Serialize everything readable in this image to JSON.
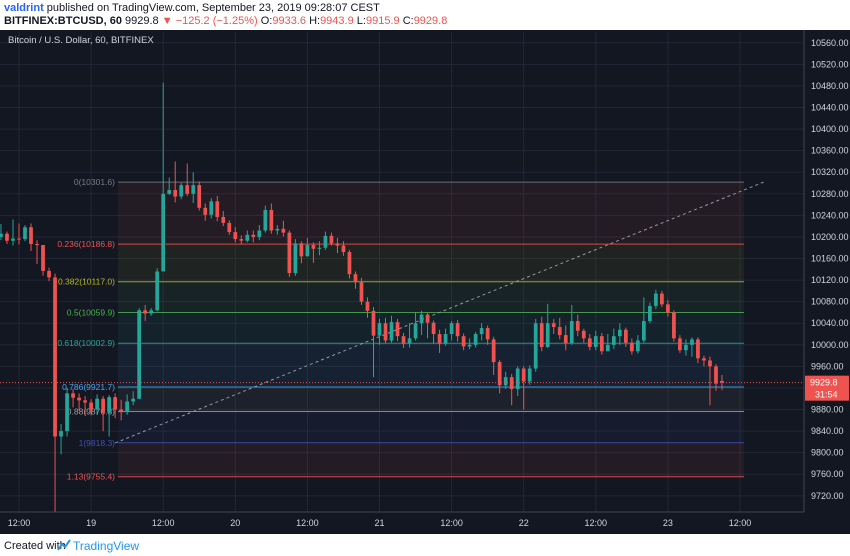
{
  "header": {
    "author": "valdrint",
    "published_text": "published on TradingView.com, September 23, 2019 09:28:07 CEST",
    "symbol": "BITFINEX:BTCUSD, 60",
    "last": "9929.8",
    "change": "−125.2 (−1.25%)",
    "o_label": "O:",
    "o_value": "9933.6",
    "h_label": "H:",
    "h_value": "9943.9",
    "l_label": "L:",
    "l_value": "9915.9",
    "c_label": "C:",
    "c_value": "9929.8"
  },
  "footer": {
    "made_with": "Created with",
    "brand": "TradingView"
  },
  "colors": {
    "background": "#131722",
    "up": "#26a69a",
    "down": "#ef5350",
    "axis_text": "#d1d4dc",
    "grid": "#232734"
  },
  "chart_data": {
    "type": "candlestick",
    "title": "Bitcoin / U.S. Dollar, 60, BITFINEX",
    "ylim": [
      9690,
      10580
    ],
    "y_ticks": [
      9720,
      9760,
      9800,
      9840,
      9880,
      9920,
      9960,
      10000,
      10040,
      10080,
      10120,
      10160,
      10200,
      10240,
      10280,
      10320,
      10360,
      10400,
      10440,
      10480,
      10520,
      10560
    ],
    "x_range": [
      -12,
      84
    ],
    "x_ticks": [
      {
        "t": 0,
        "label": "12:00"
      },
      {
        "t": 12,
        "label": "19"
      },
      {
        "t": 24,
        "label": "12:00"
      },
      {
        "t": 36,
        "label": "20"
      },
      {
        "t": 48,
        "label": "12:00"
      },
      {
        "t": 60,
        "label": "21"
      },
      {
        "t": 72,
        "label": "12:00"
      },
      {
        "t": 84,
        "label": "22"
      },
      {
        "t": 96,
        "label": "12:00"
      },
      {
        "t": 108,
        "label": "23"
      },
      {
        "t": 120,
        "label": "12:00"
      }
    ],
    "last_price": "9929.8",
    "countdown": "31:54",
    "fib_levels": [
      {
        "ratio": "0",
        "price": "10301.6",
        "label": "0(10301.6)",
        "color": "#787b86"
      },
      {
        "ratio": "0.236",
        "price": "10186.8",
        "label": "0.236(10186.8)",
        "color": "#ef5350"
      },
      {
        "ratio": "0.382",
        "price": "10117.0",
        "label": "0.382(10117.0)",
        "color": "#b5b81a"
      },
      {
        "ratio": "0.5",
        "price": "10059.9",
        "label": "0.5(10059.9)",
        "color": "#4caf50"
      },
      {
        "ratio": "0.618",
        "price": "10002.9",
        "label": "0.618(10002.9)",
        "color": "#26a69a"
      },
      {
        "ratio": "0.786",
        "price": "9921.7",
        "label": "0.786(9921.7)",
        "color": "#42a5f5"
      },
      {
        "ratio": "0.88",
        "price": "9876.3",
        "label": "0.88(9876.3)",
        "color": "#9e9e9e"
      },
      {
        "ratio": "1",
        "price": "9818.3",
        "label": "1(9818.3)",
        "color": "#3f51b5"
      },
      {
        "ratio": "1.13",
        "price": "9755.4",
        "label": "1.13(9755.4)",
        "color": "#ef5350"
      }
    ],
    "trend_line": {
      "from": [
        16,
        9818
      ],
      "to": [
        124,
        10302
      ]
    },
    "candles": [
      [
        10215,
        10212,
        10236,
        10180
      ],
      [
        10212,
        10184,
        10222,
        10170
      ],
      [
        10184,
        10200,
        10210,
        10180
      ],
      [
        10200,
        10190,
        10206,
        10166
      ],
      [
        10190,
        10212,
        10222,
        10180
      ],
      [
        10212,
        10200,
        10228,
        10196
      ],
      [
        10200,
        10206,
        10219,
        10160
      ],
      [
        10206,
        10187,
        10214,
        10178
      ],
      [
        10187,
        10200,
        10214,
        10178
      ],
      [
        10200,
        10206,
        10224,
        10194
      ],
      [
        10206,
        10193,
        10210,
        10187
      ],
      [
        10193,
        10197,
        10232,
        10184
      ],
      [
        10197,
        10196,
        10225,
        10186
      ],
      [
        10196,
        10218,
        10222,
        10192
      ],
      [
        10218,
        10187,
        10225,
        10174
      ],
      [
        10187,
        10185,
        10194,
        10150
      ],
      [
        10185,
        10137,
        10185,
        10128
      ],
      [
        10137,
        10125,
        10143,
        10118
      ],
      [
        10125,
        9830,
        10132,
        9690
      ],
      [
        9830,
        9840,
        9853,
        9797
      ],
      [
        9840,
        9910,
        9920,
        9830
      ],
      [
        9910,
        9902,
        9918,
        9884
      ],
      [
        9902,
        9897,
        9910,
        9878
      ],
      [
        9897,
        9893,
        9905,
        9869
      ],
      [
        9893,
        9880,
        9899,
        9869
      ],
      [
        9880,
        9900,
        9908,
        9870
      ],
      [
        9900,
        9874,
        9905,
        9840
      ],
      [
        9874,
        9903,
        9907,
        9830
      ],
      [
        9903,
        9880,
        9910,
        9864
      ],
      [
        9880,
        9875,
        9898,
        9860
      ],
      [
        9875,
        9895,
        9908,
        9870
      ],
      [
        9895,
        9900,
        9914,
        9888
      ],
      [
        9900,
        10064,
        10068,
        9899
      ],
      [
        10064,
        10058,
        10074,
        10044
      ],
      [
        10058,
        10064,
        10068,
        10054
      ],
      [
        10064,
        10136,
        10142,
        10062
      ],
      [
        10136,
        10280,
        10486,
        10138
      ],
      [
        10280,
        10287,
        10310,
        10278
      ],
      [
        10287,
        10275,
        10340,
        10264
      ],
      [
        10275,
        10296,
        10300,
        10270
      ],
      [
        10296,
        10280,
        10336,
        10276
      ],
      [
        10280,
        10296,
        10320,
        10263
      ],
      [
        10296,
        10254,
        10303,
        10249
      ],
      [
        10254,
        10241,
        10262,
        10230
      ],
      [
        10241,
        10266,
        10272,
        10234
      ],
      [
        10266,
        10237,
        10276,
        10229
      ],
      [
        10237,
        10226,
        10248,
        10220
      ],
      [
        10226,
        10209,
        10231,
        10204
      ],
      [
        10209,
        10196,
        10218,
        10190
      ],
      [
        10196,
        10193,
        10203,
        10186
      ],
      [
        10193,
        10204,
        10212,
        10190
      ],
      [
        10204,
        10200,
        10212,
        10190
      ],
      [
        10200,
        10212,
        10222,
        10194
      ],
      [
        10212,
        10250,
        10258,
        10208
      ],
      [
        10250,
        10212,
        10262,
        10206
      ],
      [
        10212,
        10215,
        10222,
        10204
      ],
      [
        10215,
        10208,
        10230,
        10201
      ],
      [
        10208,
        10133,
        10212,
        10126
      ],
      [
        10133,
        10188,
        10196,
        10128
      ],
      [
        10188,
        10164,
        10192,
        10151
      ],
      [
        10164,
        10185,
        10198,
        10164
      ],
      [
        10185,
        10178,
        10190,
        10152
      ],
      [
        10178,
        10180,
        10192,
        10166
      ],
      [
        10180,
        10202,
        10210,
        10176
      ],
      [
        10202,
        10188,
        10208,
        10184
      ],
      [
        10188,
        10184,
        10198,
        10170
      ],
      [
        10184,
        10172,
        10192,
        10165
      ],
      [
        10172,
        10131,
        10176,
        10123
      ],
      [
        10131,
        10116,
        10136,
        10104
      ],
      [
        10116,
        10080,
        10124,
        10074
      ],
      [
        10080,
        10063,
        10088,
        10050
      ],
      [
        10063,
        10017,
        10070,
        9940
      ],
      [
        10017,
        10040,
        10048,
        10000
      ],
      [
        10040,
        10008,
        10050,
        10003
      ],
      [
        10008,
        10042,
        10054,
        10004
      ],
      [
        10042,
        10016,
        10048,
        10007
      ],
      [
        10016,
        10002,
        10022,
        9994
      ],
      [
        10002,
        10012,
        10040,
        9995
      ],
      [
        10012,
        10040,
        10061,
        10008
      ],
      [
        10040,
        10056,
        10063,
        10018
      ],
      [
        10056,
        10041,
        10060,
        10012
      ],
      [
        10041,
        10020,
        10045,
        10002
      ],
      [
        10020,
        10002,
        10028,
        9985
      ],
      [
        10002,
        10020,
        10030,
        9998
      ],
      [
        10020,
        10040,
        10044,
        10008
      ],
      [
        10040,
        10016,
        10046,
        10006
      ],
      [
        10016,
        9997,
        10021,
        9990
      ],
      [
        9997,
        10000,
        10012,
        9992
      ],
      [
        10000,
        10020,
        10024,
        9995
      ],
      [
        10020,
        10031,
        10040,
        10008
      ],
      [
        10031,
        10010,
        10036,
        10000
      ],
      [
        10010,
        9968,
        10015,
        9944
      ],
      [
        9968,
        9925,
        9972,
        9910
      ],
      [
        9925,
        9940,
        9950,
        9918
      ],
      [
        9940,
        9918,
        9946,
        9888
      ],
      [
        9918,
        9956,
        9960,
        9905
      ],
      [
        9956,
        9932,
        9960,
        9880
      ],
      [
        9932,
        9956,
        9962,
        9926
      ],
      [
        9956,
        10040,
        10048,
        9950
      ],
      [
        10040,
        9996,
        10052,
        9988
      ],
      [
        9996,
        10040,
        10076,
        9994
      ],
      [
        10040,
        10033,
        10048,
        10020
      ],
      [
        10033,
        10018,
        10050,
        10010
      ],
      [
        10018,
        10003,
        10036,
        9990
      ],
      [
        10003,
        10044,
        10074,
        10000
      ],
      [
        10044,
        10026,
        10056,
        10016
      ],
      [
        10026,
        10012,
        10030,
        10004
      ],
      [
        10012,
        9996,
        10020,
        9990
      ],
      [
        9996,
        10016,
        10026,
        9990
      ],
      [
        10016,
        9988,
        10022,
        9982
      ],
      [
        9988,
        10000,
        10020,
        9990
      ],
      [
        10000,
        10016,
        10030,
        9992
      ],
      [
        10016,
        10028,
        10040,
        10000
      ],
      [
        10028,
        10004,
        10032,
        9996
      ],
      [
        10004,
        9988,
        10012,
        9982
      ],
      [
        9988,
        10008,
        10018,
        9984
      ],
      [
        10008,
        10044,
        10088,
        10004
      ],
      [
        10044,
        10072,
        10078,
        10040
      ],
      [
        10072,
        10095,
        10102,
        10066
      ],
      [
        10095,
        10075,
        10100,
        10070
      ],
      [
        10075,
        10060,
        10083,
        10052
      ],
      [
        10060,
        10012,
        10064,
        10006
      ],
      [
        10012,
        9990,
        10018,
        9985
      ],
      [
        9990,
        10000,
        10010,
        9980
      ],
      [
        10000,
        10010,
        10014,
        9978
      ],
      [
        10010,
        9975,
        10014,
        9966
      ],
      [
        9975,
        9971,
        9980,
        9960
      ],
      [
        9971,
        9960,
        9978,
        9888
      ],
      [
        9960,
        9928,
        9964,
        9915
      ],
      [
        9933,
        9930,
        9944,
        9916
      ]
    ]
  }
}
